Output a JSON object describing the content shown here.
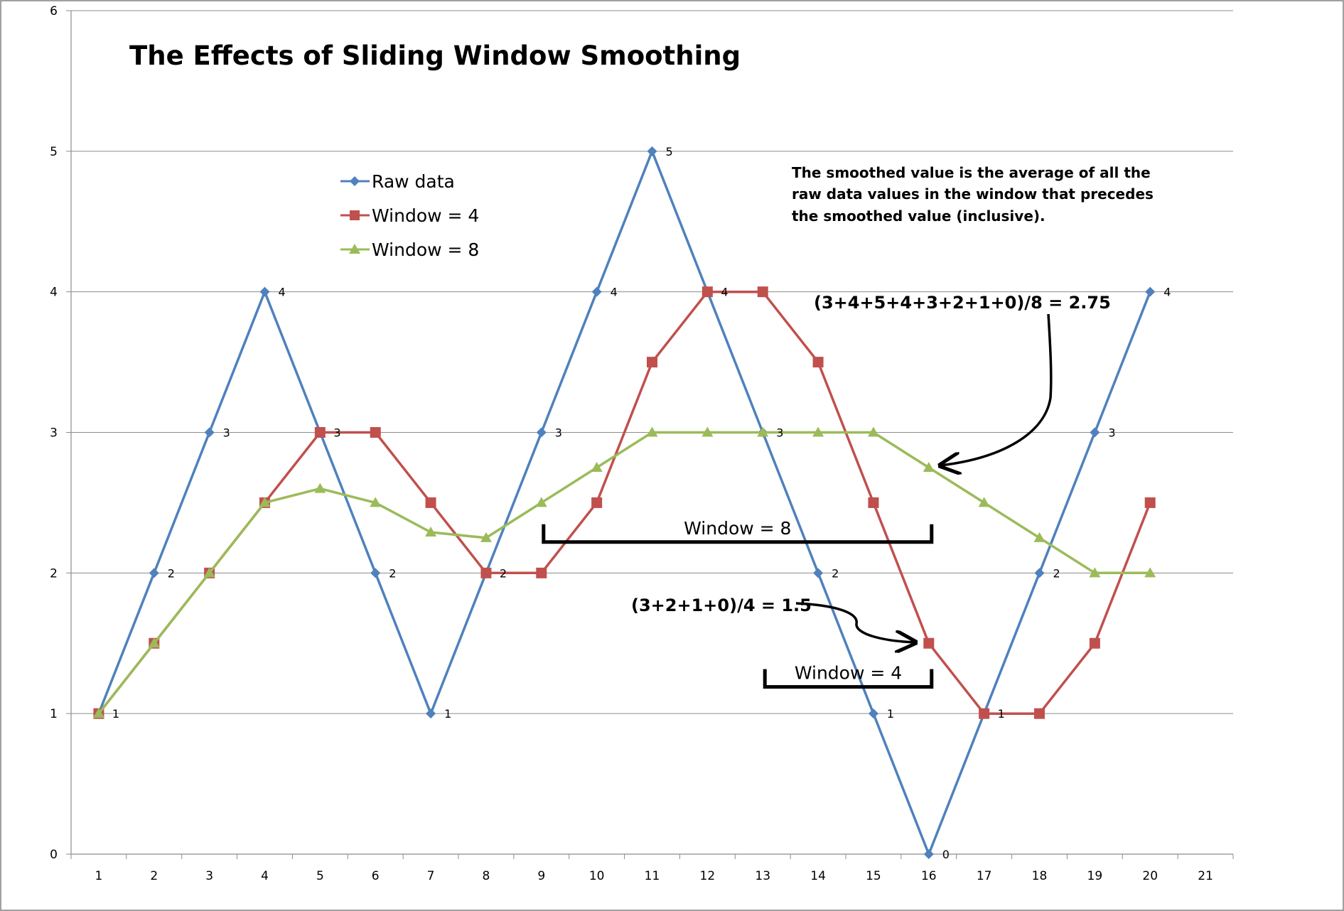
{
  "chart_data": {
    "type": "line",
    "title": "The Effects of Sliding Window Smoothing",
    "x": [
      1,
      2,
      3,
      4,
      5,
      6,
      7,
      8,
      9,
      10,
      11,
      12,
      13,
      14,
      15,
      16,
      17,
      18,
      19,
      20
    ],
    "x_ticks": [
      "1",
      "2",
      "3",
      "4",
      "5",
      "6",
      "7",
      "8",
      "9",
      "10",
      "11",
      "12",
      "13",
      "14",
      "15",
      "16",
      "17",
      "18",
      "19",
      "20",
      "21"
    ],
    "y_ticks": [
      "0",
      "1",
      "2",
      "3",
      "4",
      "5",
      "6"
    ],
    "xlim": [
      0.5,
      21.5
    ],
    "ylim": [
      0,
      6
    ],
    "grid": "horizontal",
    "legend_position": "upper-left",
    "series": [
      {
        "name": "Raw data",
        "color": "#4F81BD",
        "marker": "diamond",
        "values": [
          1,
          2,
          3,
          4,
          3,
          2,
          1,
          2,
          3,
          4,
          5,
          4,
          3,
          2,
          1,
          0,
          1,
          2,
          3,
          4
        ],
        "data_labels": true
      },
      {
        "name": "Window = 4",
        "color": "#C0504D",
        "marker": "square",
        "values": [
          1,
          1.5,
          2,
          2.5,
          3,
          3,
          2.5,
          2,
          2,
          2.5,
          3.5,
          4,
          4,
          3.5,
          2.5,
          1.5,
          1,
          1,
          1.5,
          2.5
        ],
        "data_labels": false
      },
      {
        "name": "Window = 8",
        "color": "#9BBB59",
        "marker": "triangle",
        "values": [
          1,
          1.5,
          2,
          2.5,
          2.6,
          2.5,
          2.29,
          2.25,
          2.5,
          2.75,
          3,
          3,
          3,
          3,
          3,
          2.75,
          2.5,
          2.25,
          2,
          2
        ],
        "data_labels": false
      }
    ],
    "annotations": {
      "note_lines": [
        "The smoothed value is the average of all the",
        "raw data values in the window that precedes",
        "the smoothed value (inclusive)."
      ],
      "formula_8": "(3+4+5+4+3+2+1+0)/8 = 2.75",
      "formula_4": "(3+2+1+0)/4 = 1.5",
      "bracket_8": {
        "label": "Window = 8",
        "from_x": 9,
        "to_x": 16,
        "level_y": 2.22
      },
      "bracket_4": {
        "label": "Window = 4",
        "from_x": 13,
        "to_x": 16,
        "level_y": 1.19
      }
    }
  }
}
